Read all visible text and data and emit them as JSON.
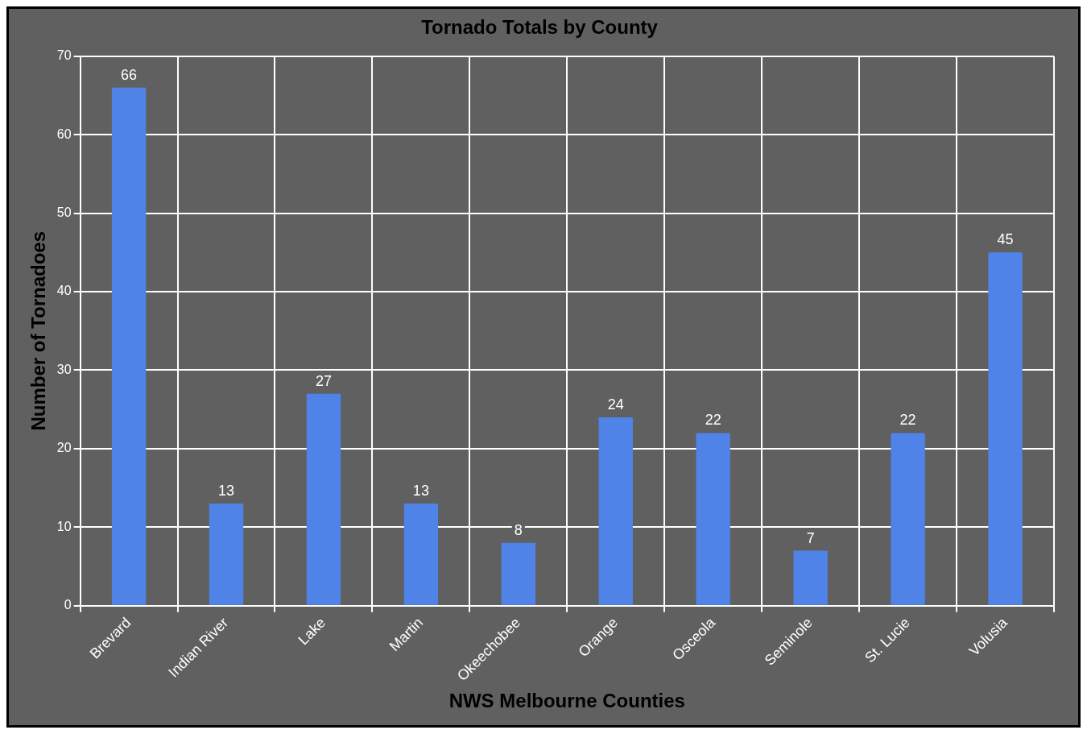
{
  "chart_data": {
    "type": "bar",
    "title": "Tornado Totals by County",
    "xlabel": "NWS Melbourne Counties",
    "ylabel": "Number of Tornadoes",
    "categories": [
      "Brevard",
      "Indian River",
      "Lake",
      "Martin",
      "Okeechobee",
      "Orange",
      "Osceola",
      "Seminole",
      "St. Lucie",
      "Volusia"
    ],
    "values": [
      66,
      13,
      27,
      13,
      8,
      24,
      22,
      7,
      22,
      45
    ],
    "color": "#4f83e8",
    "ylim": [
      0,
      70
    ],
    "yticks": [
      0,
      10,
      20,
      30,
      40,
      50,
      60,
      70
    ],
    "grid": true,
    "data_labels": true
  }
}
